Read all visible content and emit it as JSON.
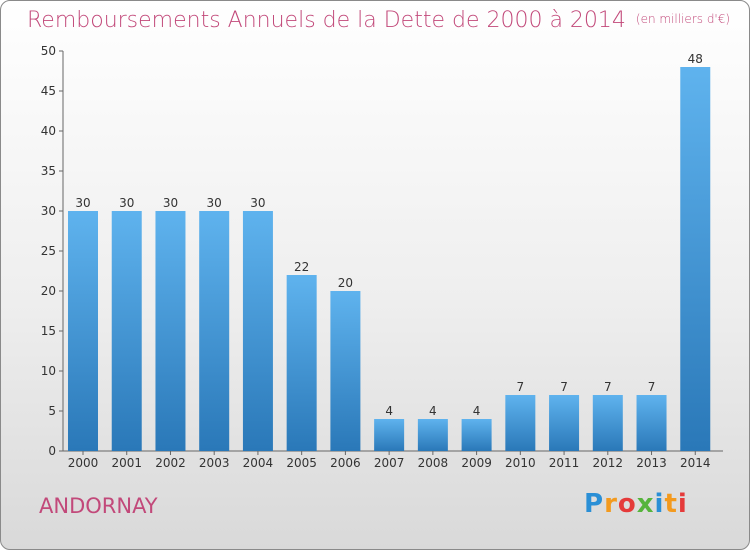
{
  "header": {
    "title": "Remboursements Annuels de la Dette de 2000 à 2014",
    "unit": "(en milliers d'€)"
  },
  "footer": {
    "commune": "ANDORNAY",
    "logo_letters": [
      "P",
      "r",
      "o",
      "x",
      "i",
      "t",
      "i"
    ]
  },
  "colors": {
    "bar_light": "#5aaeea",
    "bar_dark": "#2a78b8",
    "title": "#c2497a"
  },
  "chart_data": {
    "type": "bar",
    "title": "Remboursements Annuels de la Dette de 2000 à 2014",
    "subtitle": "(en milliers d'€)",
    "xlabel": "",
    "ylabel": "",
    "categories": [
      "2000",
      "2001",
      "2002",
      "2003",
      "2004",
      "2005",
      "2006",
      "2007",
      "2008",
      "2009",
      "2010",
      "2011",
      "2012",
      "2013",
      "2014"
    ],
    "values": [
      30,
      30,
      30,
      30,
      30,
      22,
      20,
      4,
      4,
      4,
      7,
      7,
      7,
      7,
      48
    ],
    "ylim": [
      0,
      50
    ],
    "yticks": [
      0,
      5,
      10,
      15,
      20,
      25,
      30,
      35,
      40,
      45,
      50
    ],
    "grid": false,
    "legend": "none"
  }
}
